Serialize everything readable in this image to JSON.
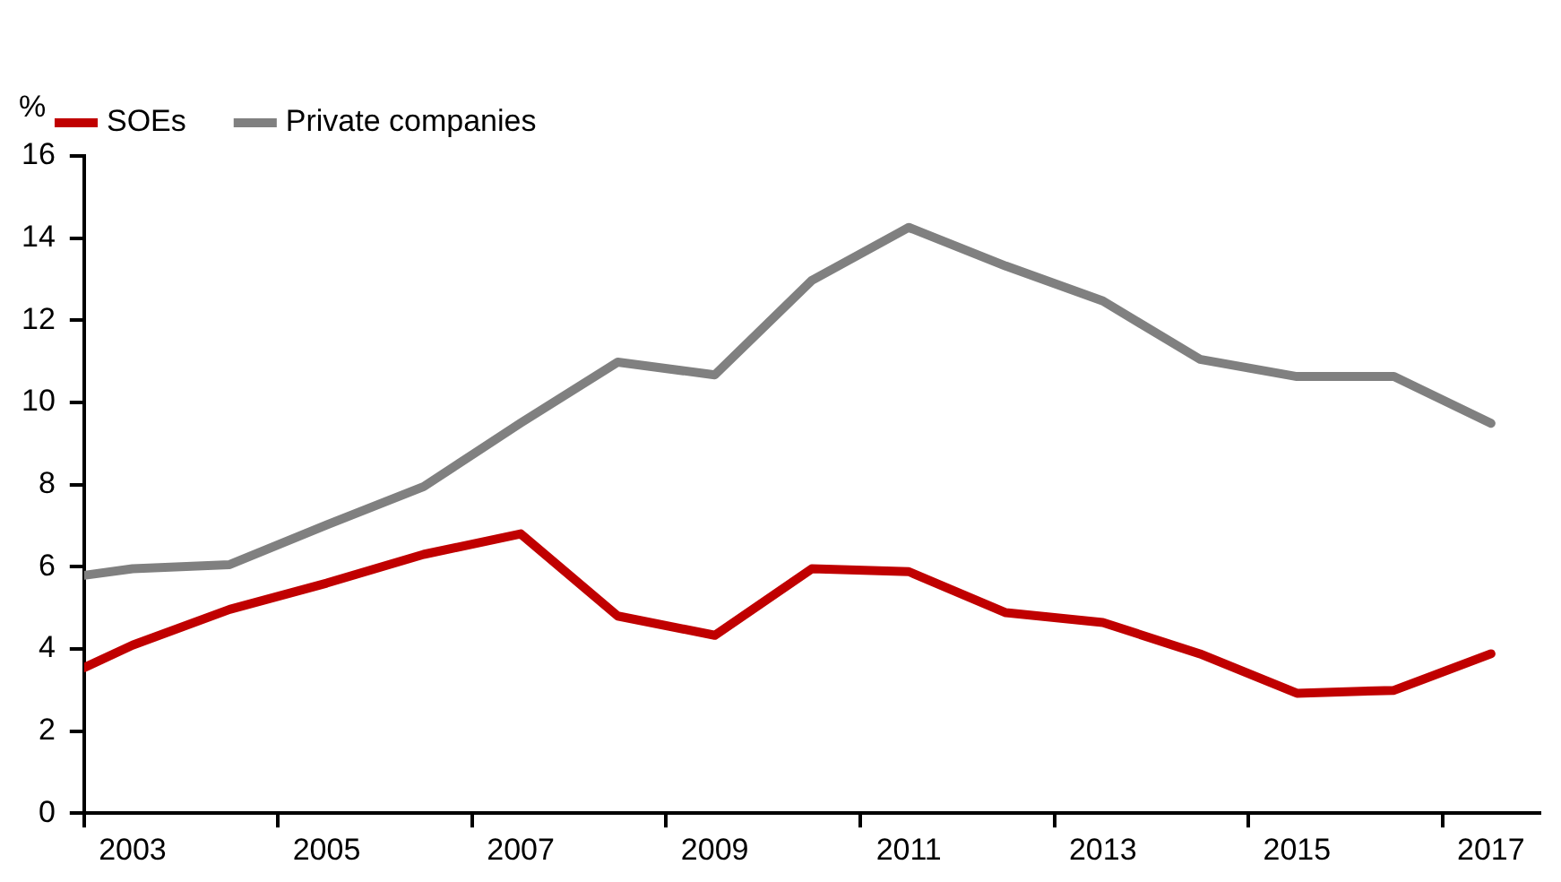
{
  "chart_data": {
    "type": "line",
    "ylabel": "%",
    "x": [
      2002.5,
      2003,
      2004,
      2005,
      2006,
      2007,
      2008,
      2009,
      2010,
      2011,
      2012,
      2013,
      2014,
      2015,
      2016,
      2017
    ],
    "series": [
      {
        "name": "SOEs",
        "color": "#c00000",
        "values": [
          3.54,
          4.09,
          4.96,
          5.6,
          6.3,
          6.8,
          4.8,
          4.33,
          5.95,
          5.88,
          4.88,
          4.64,
          3.88,
          2.92,
          2.99,
          3.88
        ]
      },
      {
        "name": "Private companies",
        "color": "#808080",
        "values": [
          5.79,
          5.95,
          6.05,
          7.02,
          7.95,
          9.5,
          10.98,
          10.67,
          12.97,
          14.26,
          13.32,
          12.47,
          11.05,
          10.63,
          10.63,
          9.49
        ]
      }
    ],
    "xlim": [
      2002.5,
      2017.5
    ],
    "xticks": [
      {
        "value": 2002.5,
        "label": null
      },
      2003,
      {
        "value": 2004.5,
        "label": null
      },
      2005,
      {
        "value": 2006.5,
        "label": null
      },
      2007,
      {
        "value": 2008.5,
        "label": null
      },
      2009,
      {
        "value": 2010.5,
        "label": null
      },
      2011,
      {
        "value": 2012.5,
        "label": null
      },
      2013,
      {
        "value": 2014.5,
        "label": null
      },
      2015,
      {
        "value": 2016.5,
        "label": null
      },
      2017
    ],
    "ylim": [
      0,
      16
    ],
    "yticks": [
      0,
      2,
      4,
      6,
      8,
      10,
      12,
      14,
      16
    ],
    "grid": false,
    "legend": "top left",
    "marker": "none",
    "line_style": "solid"
  }
}
